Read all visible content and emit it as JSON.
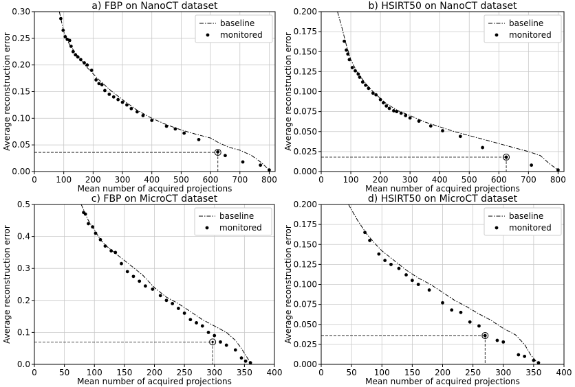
{
  "chart_data": [
    {
      "type": "scatter",
      "title": "a) FBP on NanoCT dataset",
      "xlabel": "Mean number of acquired projections",
      "ylabel": "Average reconstruction error",
      "xlim": [
        0,
        820
      ],
      "ylim": [
        0,
        0.3
      ],
      "xticks": [
        0,
        100,
        200,
        300,
        400,
        500,
        600,
        700,
        800
      ],
      "yticks": [
        0.0,
        0.05,
        0.1,
        0.15,
        0.2,
        0.25,
        0.3
      ],
      "x_tick_labels": [
        "0",
        "100",
        "200",
        "300",
        "400",
        "500",
        "600",
        "700",
        "800"
      ],
      "y_tick_labels": [
        "0.00",
        "0.05",
        "0.10",
        "0.15",
        "0.20",
        "0.25",
        "0.30"
      ],
      "grid": true,
      "legend": {
        "position": "top-right",
        "entries": [
          "baseline",
          "monitored"
        ]
      },
      "series": [
        {
          "name": "baseline",
          "kind": "line",
          "x": [
            85,
            100,
            120,
            150,
            180,
            220,
            260,
            300,
            350,
            400,
            450,
            500,
            550,
            600,
            625,
            660,
            700,
            740,
            770,
            800
          ],
          "y": [
            0.3,
            0.262,
            0.238,
            0.215,
            0.195,
            0.172,
            0.152,
            0.135,
            0.115,
            0.1,
            0.088,
            0.078,
            0.07,
            0.063,
            0.055,
            0.046,
            0.04,
            0.03,
            0.018,
            0.003
          ]
        },
        {
          "name": "monitored",
          "kind": "scatter",
          "x": [
            90,
            98,
            105,
            112,
            120,
            125,
            132,
            140,
            148,
            158,
            170,
            180,
            195,
            210,
            220,
            230,
            240,
            255,
            270,
            285,
            300,
            315,
            330,
            350,
            370,
            400,
            450,
            480,
            510,
            560,
            625,
            650,
            710,
            770,
            800
          ],
          "y": [
            0.287,
            0.265,
            0.253,
            0.248,
            0.246,
            0.235,
            0.225,
            0.219,
            0.215,
            0.21,
            0.204,
            0.2,
            0.19,
            0.172,
            0.165,
            0.163,
            0.152,
            0.145,
            0.14,
            0.135,
            0.13,
            0.125,
            0.118,
            0.112,
            0.105,
            0.096,
            0.085,
            0.08,
            0.072,
            0.06,
            0.037,
            0.03,
            0.018,
            0.012,
            0.003
          ]
        }
      ],
      "highlight": {
        "x": 625,
        "y": 0.036
      }
    },
    {
      "type": "scatter",
      "title": "b) HSIRT50 on NanoCT dataset",
      "xlabel": "Mean number of acquired projections",
      "ylabel": "Average reconstruction error",
      "xlim": [
        0,
        820
      ],
      "ylim": [
        0,
        0.2
      ],
      "xticks": [
        0,
        100,
        200,
        300,
        400,
        500,
        600,
        700,
        800
      ],
      "yticks": [
        0.0,
        0.025,
        0.05,
        0.075,
        0.1,
        0.125,
        0.15,
        0.175,
        0.2
      ],
      "x_tick_labels": [
        "0",
        "100",
        "200",
        "300",
        "400",
        "500",
        "600",
        "700",
        "800"
      ],
      "y_tick_labels": [
        "0.000",
        "0.025",
        "0.050",
        "0.075",
        "0.100",
        "0.125",
        "0.150",
        "0.175",
        "0.200"
      ],
      "grid": true,
      "legend": {
        "position": "top-right",
        "entries": [
          "baseline",
          "monitored"
        ]
      },
      "series": [
        {
          "name": "baseline",
          "kind": "line",
          "x": [
            55,
            70,
            85,
            100,
            120,
            150,
            180,
            220,
            260,
            300,
            350,
            400,
            450,
            500,
            550,
            600,
            650,
            700,
            740,
            770,
            800
          ],
          "y": [
            0.2,
            0.18,
            0.158,
            0.14,
            0.125,
            0.11,
            0.098,
            0.085,
            0.076,
            0.07,
            0.062,
            0.056,
            0.05,
            0.045,
            0.04,
            0.035,
            0.03,
            0.025,
            0.02,
            0.01,
            0.002
          ]
        },
        {
          "name": "monitored",
          "kind": "scatter",
          "x": [
            78,
            85,
            90,
            95,
            105,
            115,
            125,
            130,
            140,
            150,
            160,
            175,
            185,
            200,
            210,
            220,
            230,
            245,
            255,
            270,
            285,
            300,
            330,
            370,
            410,
            470,
            545,
            625,
            710,
            800
          ],
          "y": [
            0.163,
            0.152,
            0.147,
            0.14,
            0.13,
            0.126,
            0.122,
            0.118,
            0.112,
            0.108,
            0.104,
            0.098,
            0.096,
            0.09,
            0.086,
            0.082,
            0.079,
            0.076,
            0.075,
            0.073,
            0.07,
            0.067,
            0.063,
            0.057,
            0.051,
            0.044,
            0.03,
            0.018,
            0.008,
            0.002
          ]
        }
      ],
      "highlight": {
        "x": 625,
        "y": 0.018
      }
    },
    {
      "type": "scatter",
      "title": "c) FBP on MicroCT dataset",
      "xlabel": "Mean number of acquired projections",
      "ylabel": "Average reconstruction error",
      "xlim": [
        0,
        400
      ],
      "ylim": [
        0,
        0.5
      ],
      "xticks": [
        0,
        50,
        100,
        150,
        200,
        250,
        300,
        350,
        400
      ],
      "yticks": [
        0.0,
        0.1,
        0.2,
        0.3,
        0.4,
        0.5
      ],
      "x_tick_labels": [
        "0",
        "50",
        "100",
        "150",
        "200",
        "250",
        "300",
        "350",
        "400"
      ],
      "y_tick_labels": [
        "0.0",
        "0.1",
        "0.2",
        "0.3",
        "0.4",
        "0.5"
      ],
      "grid": true,
      "legend": {
        "position": "top-right",
        "entries": [
          "baseline",
          "monitored"
        ]
      },
      "series": [
        {
          "name": "baseline",
          "kind": "line",
          "x": [
            78,
            90,
            100,
            110,
            120,
            140,
            160,
            180,
            200,
            220,
            240,
            260,
            280,
            300,
            320,
            335,
            345,
            355,
            362
          ],
          "y": [
            0.5,
            0.45,
            0.42,
            0.39,
            0.37,
            0.34,
            0.31,
            0.28,
            0.24,
            0.21,
            0.19,
            0.165,
            0.14,
            0.12,
            0.1,
            0.075,
            0.05,
            0.02,
            0.0
          ]
        },
        {
          "name": "monitored",
          "kind": "scatter",
          "x": [
            82,
            85,
            90,
            97,
            102,
            110,
            118,
            128,
            135,
            145,
            155,
            165,
            175,
            185,
            197,
            210,
            220,
            230,
            240,
            250,
            260,
            270,
            280,
            290,
            300,
            310,
            320,
            335,
            345,
            352,
            360
          ],
          "y": [
            0.475,
            0.47,
            0.44,
            0.43,
            0.41,
            0.39,
            0.37,
            0.355,
            0.35,
            0.315,
            0.29,
            0.275,
            0.26,
            0.245,
            0.235,
            0.215,
            0.2,
            0.19,
            0.175,
            0.16,
            0.14,
            0.13,
            0.12,
            0.1,
            0.09,
            0.07,
            0.06,
            0.045,
            0.02,
            0.01,
            0.005
          ]
        }
      ],
      "highlight": {
        "x": 297,
        "y": 0.07
      }
    },
    {
      "type": "scatter",
      "title": "d) HSIRT50 on MicroCT dataset",
      "xlabel": "Mean number of acquired projections",
      "ylabel": "Average reconstruction error",
      "xlim": [
        0,
        400
      ],
      "ylim": [
        0,
        0.2
      ],
      "xticks": [
        0,
        50,
        100,
        150,
        200,
        250,
        300,
        350,
        400
      ],
      "yticks": [
        0.0,
        0.025,
        0.05,
        0.075,
        0.1,
        0.125,
        0.15,
        0.175,
        0.2
      ],
      "x_tick_labels": [
        "0",
        "50",
        "100",
        "150",
        "200",
        "250",
        "300",
        "350",
        "400"
      ],
      "y_tick_labels": [
        "0.000",
        "0.025",
        "0.050",
        "0.075",
        "0.100",
        "0.125",
        "0.150",
        "0.175",
        "0.200"
      ],
      "grid": true,
      "legend": {
        "position": "top-right",
        "entries": [
          "baseline",
          "monitored"
        ]
      },
      "series": [
        {
          "name": "baseline",
          "kind": "line",
          "x": [
            45,
            60,
            75,
            90,
            100,
            120,
            140,
            160,
            180,
            200,
            220,
            240,
            260,
            280,
            300,
            320,
            335,
            345,
            355,
            360
          ],
          "y": [
            0.2,
            0.18,
            0.163,
            0.15,
            0.142,
            0.13,
            0.118,
            0.108,
            0.1,
            0.09,
            0.08,
            0.072,
            0.063,
            0.055,
            0.045,
            0.037,
            0.025,
            0.012,
            0.003,
            0.0
          ]
        },
        {
          "name": "monitored",
          "kind": "scatter",
          "x": [
            72,
            80,
            95,
            105,
            115,
            128,
            140,
            150,
            160,
            178,
            200,
            215,
            230,
            245,
            260,
            270,
            290,
            300,
            325,
            335,
            350,
            358
          ],
          "y": [
            0.165,
            0.155,
            0.138,
            0.13,
            0.125,
            0.12,
            0.112,
            0.105,
            0.1,
            0.093,
            0.077,
            0.068,
            0.065,
            0.053,
            0.048,
            0.036,
            0.03,
            0.028,
            0.012,
            0.01,
            0.005,
            0.002
          ]
        }
      ],
      "highlight": {
        "x": 270,
        "y": 0.036
      }
    }
  ]
}
